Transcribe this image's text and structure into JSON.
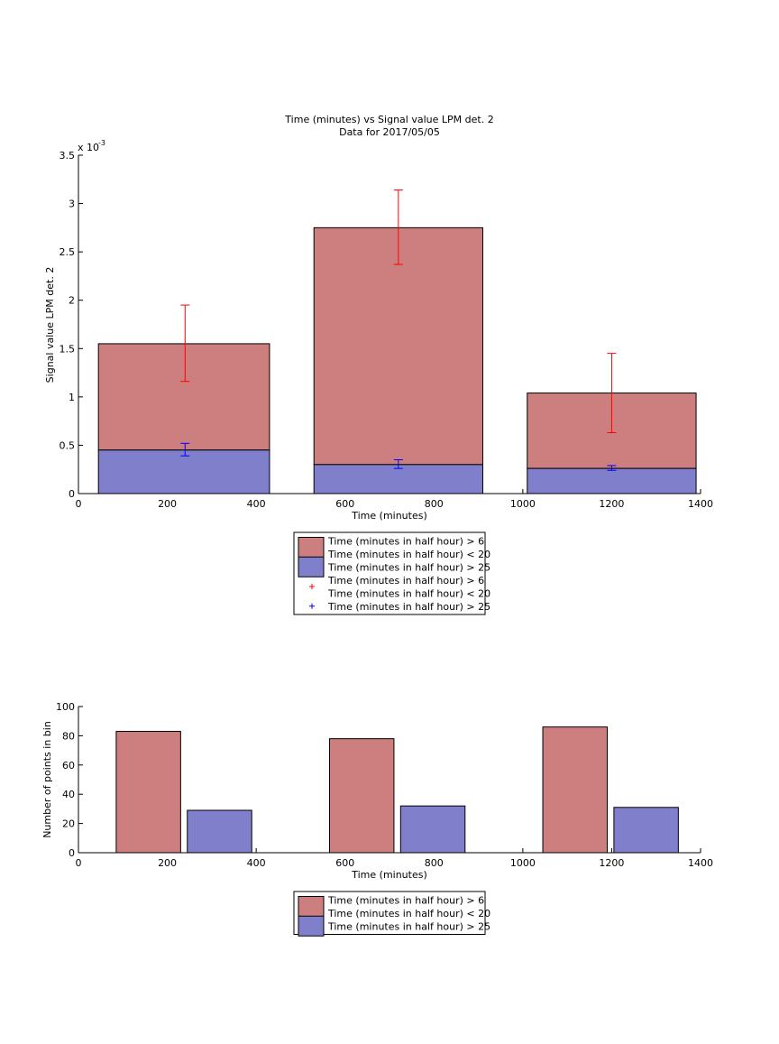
{
  "chart_data": [
    {
      "type": "bar",
      "title": "Time (minutes) vs Signal value LPM det. 2",
      "subtitle": "Data for 2017/05/05",
      "xlabel": "Time (minutes)",
      "ylabel": "Signal value LPM det. 2",
      "y_exponent_label": "x 10",
      "y_exponent": "-3",
      "xlim": [
        0,
        1400
      ],
      "ylim": [
        0,
        3.5
      ],
      "xticks": [
        "0",
        "200",
        "400",
        "600",
        "800",
        "1000",
        "1200",
        "1400"
      ],
      "yticks": [
        "0",
        "0.5",
        "1",
        "1.5",
        "2",
        "2.5",
        "3",
        "3.5"
      ],
      "grid": false,
      "bars": [
        {
          "x_start": 45,
          "x_end": 430,
          "value_low": 0.45,
          "value_high": 1.55
        },
        {
          "x_start": 530,
          "x_end": 910,
          "value_low": 0.3,
          "value_high": 2.75
        },
        {
          "x_start": 1010,
          "x_end": 1390,
          "value_low": 0.26,
          "value_high": 1.04
        }
      ],
      "errorbars": [
        {
          "series": "upper",
          "x": 240,
          "y": 1.55,
          "low": 1.16,
          "high": 1.95
        },
        {
          "series": "upper",
          "x": 720,
          "y": 2.75,
          "low": 2.37,
          "high": 3.14
        },
        {
          "series": "upper",
          "x": 1200,
          "y": 1.04,
          "low": 0.63,
          "high": 1.45
        },
        {
          "series": "lower",
          "x": 240,
          "y": 0.45,
          "low": 0.39,
          "high": 0.52
        },
        {
          "series": "lower",
          "x": 720,
          "y": 0.3,
          "low": 0.26,
          "high": 0.35
        },
        {
          "series": "lower",
          "x": 1200,
          "y": 0.26,
          "low": 0.24,
          "high": 0.29
        }
      ],
      "legend": {
        "position": "below",
        "entries": [
          {
            "kind": "patch",
            "color": "#cc7f7e",
            "lines": [
              "Time (minutes in half hour) > 6",
              "Time (minutes in half hour) < 20"
            ]
          },
          {
            "kind": "patch",
            "color": "#7f7fcc",
            "lines": [
              "Time (minutes in half hour) > 25"
            ]
          },
          {
            "kind": "marker",
            "color": "#ff0000",
            "lines": [
              "Time (minutes in half hour) > 6",
              "Time (minutes in half hour) < 20"
            ]
          },
          {
            "kind": "marker",
            "color": "#0000ff",
            "lines": [
              "Time (minutes in half hour) > 25"
            ]
          }
        ]
      }
    },
    {
      "type": "bar",
      "title": "",
      "xlabel": "Time (minutes)",
      "ylabel": "Number of points in bin",
      "xlim": [
        0,
        1400
      ],
      "ylim": [
        0,
        100
      ],
      "xticks": [
        "0",
        "200",
        "400",
        "600",
        "800",
        "1000",
        "1200",
        "1400"
      ],
      "yticks": [
        "0",
        "20",
        "40",
        "60",
        "80",
        "100"
      ],
      "grid": false,
      "bars": [
        {
          "series": "upper",
          "x_start": 85,
          "x_end": 230,
          "value": 83
        },
        {
          "series": "lower",
          "x_start": 245,
          "x_end": 390,
          "value": 29
        },
        {
          "series": "upper",
          "x_start": 565,
          "x_end": 710,
          "value": 78
        },
        {
          "series": "lower",
          "x_start": 725,
          "x_end": 870,
          "value": 32
        },
        {
          "series": "upper",
          "x_start": 1045,
          "x_end": 1190,
          "value": 86
        },
        {
          "series": "lower",
          "x_start": 1205,
          "x_end": 1350,
          "value": 31
        }
      ],
      "legend": {
        "position": "below",
        "entries": [
          {
            "kind": "patch",
            "color": "#cc7f7e",
            "lines": [
              "Time (minutes in half hour) > 6",
              "Time (minutes in half hour) < 20"
            ]
          },
          {
            "kind": "patch",
            "color": "#7f7fcc",
            "lines": [
              "Time (minutes in half hour) > 25"
            ]
          }
        ]
      }
    }
  ],
  "colors": {
    "upper_fill": "#cc7f7e",
    "lower_fill": "#7f7fcc",
    "upper_error": "#ff0000",
    "lower_error": "#0000ff"
  }
}
